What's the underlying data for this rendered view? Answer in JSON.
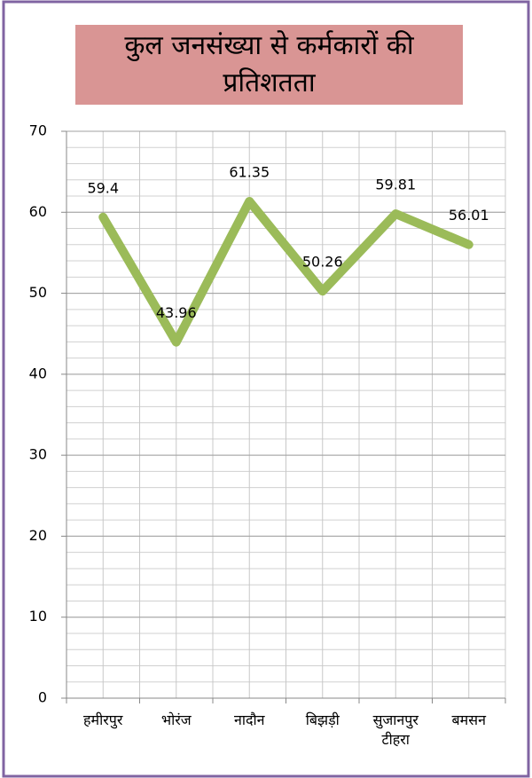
{
  "chart_data": {
    "type": "line",
    "title": "कुल जनसंख्या से कर्मकारों की प्रतिशतता",
    "categories": [
      "हमीरपुर",
      "भोरंज",
      "नादौन",
      "बिझड़ी",
      "सुजानपुर टीहरा",
      "बमसन"
    ],
    "values": [
      59.4,
      43.96,
      61.35,
      50.26,
      59.81,
      56.01
    ],
    "color": "#9bbb59",
    "ylim": [
      0,
      70
    ],
    "yticks": [
      0,
      10,
      20,
      30,
      40,
      50,
      60,
      70
    ],
    "grid": true
  }
}
